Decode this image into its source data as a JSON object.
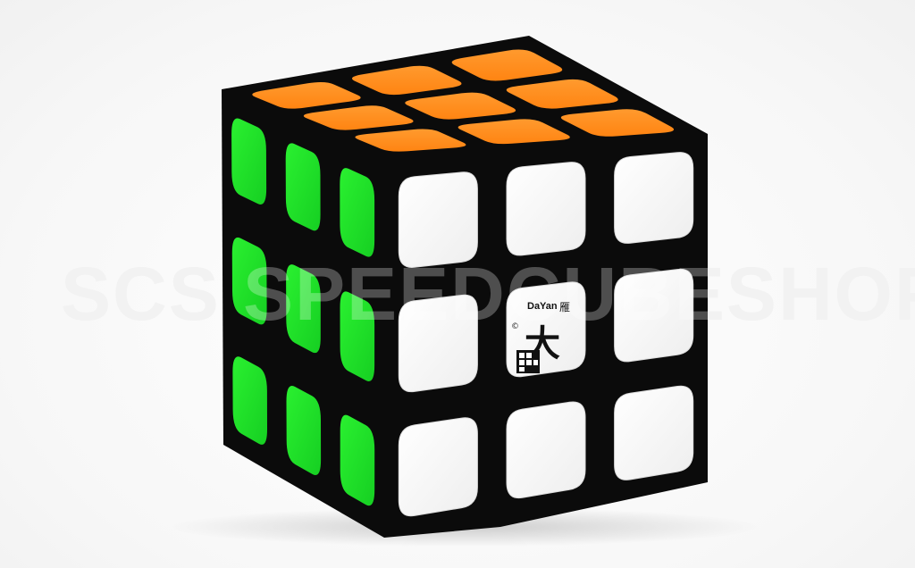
{
  "image": {
    "subject": "3x3 puzzle cube",
    "watermark_text": "SCS SPEEDCUBESHOP",
    "logo_brand": "DaYan",
    "logo_glyph": "大",
    "logo_small_glyph": "雁",
    "logo_mark": "©"
  },
  "colors": {
    "background": "#ffffff",
    "body": "#0d0d0d",
    "top_orange": "#ff8c1a",
    "left_green": "#22e02a",
    "front_white": "#ffffff",
    "watermark": "#e8e8e8"
  },
  "faces": {
    "top": "orange",
    "left": "green",
    "front": "white"
  }
}
